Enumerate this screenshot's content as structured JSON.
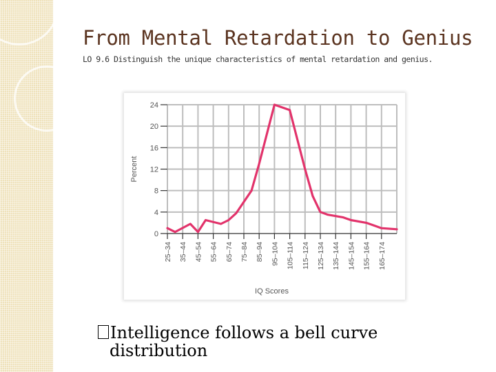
{
  "slide": {
    "title": "From Mental Retardation to Genius",
    "subtitle": "LO 9.6 Distinguish the unique characteristics of mental retardation and genius.",
    "bullet_line1": "Intelligence follows a bell curve",
    "bullet_line2": "distribution"
  },
  "chart_data": {
    "type": "line",
    "xlabel": "IQ Scores",
    "ylabel": "Percent",
    "categories": [
      "25–34",
      "35–44",
      "45–54",
      "55–64",
      "65–74",
      "75–84",
      "85–94",
      "95–104",
      "105–114",
      "115–124",
      "125–134",
      "135–144",
      "145–154",
      "155–164",
      "165–174"
    ],
    "x": [
      25,
      30,
      40,
      45,
      50,
      60,
      65,
      70,
      80,
      85,
      95,
      100,
      105,
      115,
      120,
      125,
      130,
      140,
      145,
      155,
      160,
      165,
      175
    ],
    "values": [
      1,
      0.3,
      1.8,
      0.3,
      2.5,
      1.8,
      2.5,
      3.8,
      8,
      13,
      24,
      23.5,
      23,
      12,
      7,
      4,
      3.5,
      3,
      2.5,
      2,
      1.5,
      1,
      0.8
    ],
    "yticks": [
      0,
      4,
      8,
      12,
      16,
      20,
      24
    ],
    "ylim": [
      0,
      24
    ],
    "xlim": [
      25,
      175
    ],
    "grid": true,
    "line_color": "#e2336b",
    "grid_color": "#bdbdbd",
    "axis_color": "#333333"
  }
}
